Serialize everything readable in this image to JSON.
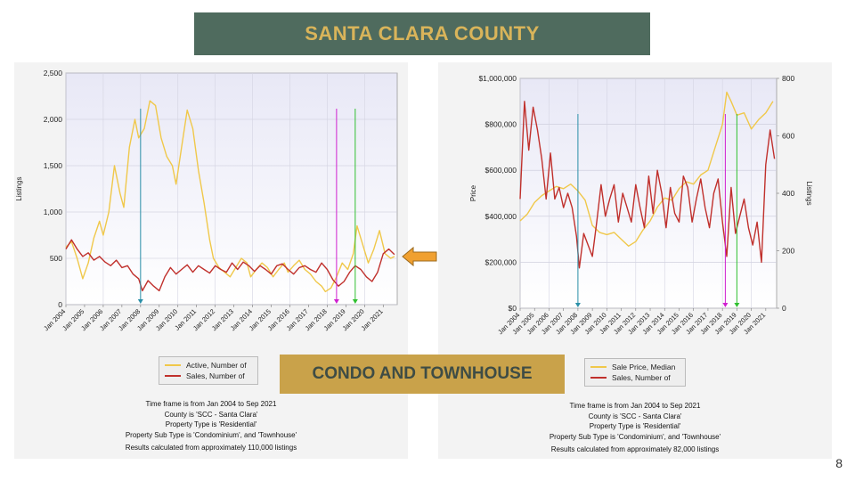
{
  "slide": {
    "title": "SANTA CLARA COUNTY",
    "subtitle": "CONDO AND TOWNHOUSE",
    "page_number": "8"
  },
  "colors": {
    "banner_bg": "#4f6b5e",
    "banner_text": "#d9b45a",
    "subbanner_bg": "#c9a24a",
    "subbanner_text": "#3e4c45",
    "yellow_series": "#f0c84a",
    "red_series": "#c0302c",
    "arrow": "#f0a030"
  },
  "left_notes": [
    "Time frame is from Jan 2004 to Sep 2021",
    "County is 'SCC - Santa Clara'",
    "Property Type is 'Residential'",
    "Property Sub Type is 'Condominium', and 'Townhouse'",
    "Results calculated from approximately 110,000 listings"
  ],
  "right_notes": [
    "Time frame is from Jan 2004 to Sep 2021",
    "County is 'SCC - Santa Clara'",
    "Property Type is 'Residential'",
    "Property Sub Type is 'Condominium', and 'Townhouse'",
    "Results calculated from approximately 82,000 listings"
  ],
  "chart_data": [
    {
      "type": "line",
      "ylabel": "Listings",
      "ylim": [
        0,
        2500
      ],
      "yticks": [
        "0",
        "500",
        "1,000",
        "1,500",
        "2,000",
        "2,500"
      ],
      "x_ticks": [
        "Jan 2004",
        "Jan 2005",
        "Jan 2006",
        "Jan 2007",
        "Jan 2008",
        "Jan 2009",
        "Jan 2010",
        "Jan 2011",
        "Jan 2012",
        "Jan 2013",
        "Jan 2014",
        "Jan 2015",
        "Jan 2016",
        "Jan 2017",
        "Jan 2018",
        "Jan 2019",
        "Jan 2020",
        "Jan 2021"
      ],
      "xlim": [
        2004,
        2021.75
      ],
      "grid": true,
      "legend_position": "bottom",
      "series": [
        {
          "name": "Active, Number of",
          "color": "#f0c84a",
          "points": [
            [
              2004.0,
              620
            ],
            [
              2004.3,
              680
            ],
            [
              2004.6,
              500
            ],
            [
              2004.9,
              280
            ],
            [
              2005.2,
              450
            ],
            [
              2005.5,
              720
            ],
            [
              2005.8,
              900
            ],
            [
              2006.0,
              750
            ],
            [
              2006.3,
              1000
            ],
            [
              2006.6,
              1500
            ],
            [
              2006.9,
              1200
            ],
            [
              2007.1,
              1050
            ],
            [
              2007.4,
              1700
            ],
            [
              2007.7,
              2000
            ],
            [
              2007.9,
              1800
            ],
            [
              2008.2,
              1900
            ],
            [
              2008.5,
              2200
            ],
            [
              2008.8,
              2150
            ],
            [
              2009.1,
              1800
            ],
            [
              2009.4,
              1600
            ],
            [
              2009.7,
              1500
            ],
            [
              2009.9,
              1300
            ],
            [
              2010.2,
              1700
            ],
            [
              2010.5,
              2100
            ],
            [
              2010.8,
              1900
            ],
            [
              2011.1,
              1450
            ],
            [
              2011.4,
              1100
            ],
            [
              2011.7,
              700
            ],
            [
              2011.9,
              500
            ],
            [
              2012.2,
              400
            ],
            [
              2012.5,
              350
            ],
            [
              2012.8,
              300
            ],
            [
              2013.1,
              400
            ],
            [
              2013.4,
              500
            ],
            [
              2013.7,
              450
            ],
            [
              2013.9,
              300
            ],
            [
              2014.2,
              380
            ],
            [
              2014.5,
              450
            ],
            [
              2014.8,
              400
            ],
            [
              2015.1,
              300
            ],
            [
              2015.4,
              380
            ],
            [
              2015.7,
              450
            ],
            [
              2015.9,
              350
            ],
            [
              2016.2,
              420
            ],
            [
              2016.5,
              480
            ],
            [
              2016.8,
              380
            ],
            [
              2017.1,
              330
            ],
            [
              2017.4,
              250
            ],
            [
              2017.7,
              200
            ],
            [
              2017.9,
              140
            ],
            [
              2018.2,
              180
            ],
            [
              2018.5,
              300
            ],
            [
              2018.8,
              450
            ],
            [
              2019.1,
              380
            ],
            [
              2019.4,
              550
            ],
            [
              2019.6,
              850
            ],
            [
              2019.9,
              650
            ],
            [
              2020.2,
              450
            ],
            [
              2020.5,
              600
            ],
            [
              2020.8,
              800
            ],
            [
              2021.1,
              550
            ],
            [
              2021.4,
              500
            ],
            [
              2021.6,
              520
            ]
          ]
        },
        {
          "name": "Sales, Number of",
          "color": "#c0302c",
          "points": [
            [
              2004.0,
              600
            ],
            [
              2004.3,
              700
            ],
            [
              2004.6,
              600
            ],
            [
              2004.9,
              520
            ],
            [
              2005.2,
              560
            ],
            [
              2005.5,
              480
            ],
            [
              2005.8,
              520
            ],
            [
              2006.1,
              460
            ],
            [
              2006.4,
              420
            ],
            [
              2006.7,
              480
            ],
            [
              2007.0,
              400
            ],
            [
              2007.3,
              420
            ],
            [
              2007.6,
              330
            ],
            [
              2007.9,
              280
            ],
            [
              2008.1,
              150
            ],
            [
              2008.4,
              260
            ],
            [
              2008.7,
              200
            ],
            [
              2009.0,
              150
            ],
            [
              2009.3,
              300
            ],
            [
              2009.6,
              400
            ],
            [
              2009.9,
              330
            ],
            [
              2010.2,
              380
            ],
            [
              2010.5,
              430
            ],
            [
              2010.8,
              350
            ],
            [
              2011.1,
              420
            ],
            [
              2011.4,
              380
            ],
            [
              2011.7,
              340
            ],
            [
              2012.0,
              420
            ],
            [
              2012.3,
              380
            ],
            [
              2012.6,
              350
            ],
            [
              2012.9,
              450
            ],
            [
              2013.2,
              380
            ],
            [
              2013.5,
              460
            ],
            [
              2013.8,
              420
            ],
            [
              2014.1,
              360
            ],
            [
              2014.4,
              420
            ],
            [
              2014.7,
              380
            ],
            [
              2015.0,
              330
            ],
            [
              2015.3,
              420
            ],
            [
              2015.6,
              440
            ],
            [
              2015.9,
              380
            ],
            [
              2016.2,
              330
            ],
            [
              2016.5,
              400
            ],
            [
              2016.8,
              420
            ],
            [
              2017.1,
              380
            ],
            [
              2017.4,
              350
            ],
            [
              2017.7,
              450
            ],
            [
              2018.0,
              380
            ],
            [
              2018.3,
              270
            ],
            [
              2018.6,
              200
            ],
            [
              2018.9,
              250
            ],
            [
              2019.2,
              350
            ],
            [
              2019.5,
              420
            ],
            [
              2019.8,
              380
            ],
            [
              2020.1,
              300
            ],
            [
              2020.4,
              250
            ],
            [
              2020.7,
              350
            ],
            [
              2021.0,
              550
            ],
            [
              2021.3,
              600
            ],
            [
              2021.6,
              540
            ]
          ]
        }
      ],
      "markers": [
        {
          "x": 2008.0,
          "color": "#2a8fa8"
        },
        {
          "x": 2018.5,
          "color": "#d020d0"
        },
        {
          "x": 2019.5,
          "color": "#30c030"
        }
      ]
    },
    {
      "type": "line",
      "ylabel": "Price",
      "y2label": "Listings",
      "ylim": [
        0,
        1000000
      ],
      "y2lim": [
        0,
        800
      ],
      "yticks": [
        "$0",
        "$200,000",
        "$400,000",
        "$600,000",
        "$800,000",
        "$1,000,000"
      ],
      "y2ticks": [
        "0",
        "200",
        "400",
        "600",
        "800"
      ],
      "x_ticks": [
        "Jan 2004",
        "Jan 2005",
        "Jan 2006",
        "Jan 2007",
        "Jan 2008",
        "Jan 2009",
        "Jan 2010",
        "Jan 2011",
        "Jan 2012",
        "Jan 2013",
        "Jan 2014",
        "Jan 2015",
        "Jan 2016",
        "Jan 2017",
        "Jan 2018",
        "Jan 2019",
        "Jan 2020",
        "Jan 2021"
      ],
      "xlim": [
        2004,
        2021.75
      ],
      "grid": true,
      "legend_position": "bottom",
      "series": [
        {
          "name": "Sale Price, Median",
          "color": "#f0c84a",
          "axis": "left",
          "points": [
            [
              2004.0,
              380000
            ],
            [
              2004.5,
              410000
            ],
            [
              2005.0,
              460000
            ],
            [
              2005.5,
              490000
            ],
            [
              2006.0,
              510000
            ],
            [
              2006.5,
              530000
            ],
            [
              2007.0,
              520000
            ],
            [
              2007.5,
              540000
            ],
            [
              2008.0,
              510000
            ],
            [
              2008.5,
              470000
            ],
            [
              2009.0,
              360000
            ],
            [
              2009.5,
              330000
            ],
            [
              2010.0,
              320000
            ],
            [
              2010.5,
              330000
            ],
            [
              2011.0,
              300000
            ],
            [
              2011.5,
              270000
            ],
            [
              2012.0,
              290000
            ],
            [
              2012.5,
              340000
            ],
            [
              2013.0,
              380000
            ],
            [
              2013.5,
              440000
            ],
            [
              2014.0,
              480000
            ],
            [
              2014.5,
              470000
            ],
            [
              2015.0,
              520000
            ],
            [
              2015.5,
              550000
            ],
            [
              2016.0,
              540000
            ],
            [
              2016.5,
              580000
            ],
            [
              2017.0,
              600000
            ],
            [
              2017.5,
              700000
            ],
            [
              2018.0,
              800000
            ],
            [
              2018.3,
              940000
            ],
            [
              2018.6,
              900000
            ],
            [
              2019.0,
              840000
            ],
            [
              2019.5,
              850000
            ],
            [
              2020.0,
              780000
            ],
            [
              2020.5,
              820000
            ],
            [
              2021.0,
              850000
            ],
            [
              2021.5,
              900000
            ]
          ]
        },
        {
          "name": "Sales, Number of",
          "color": "#c0302c",
          "axis": "right",
          "points": [
            [
              2004.0,
              380
            ],
            [
              2004.3,
              720
            ],
            [
              2004.6,
              550
            ],
            [
              2004.9,
              700
            ],
            [
              2005.2,
              620
            ],
            [
              2005.5,
              520
            ],
            [
              2005.8,
              380
            ],
            [
              2006.1,
              540
            ],
            [
              2006.4,
              380
            ],
            [
              2006.7,
              420
            ],
            [
              2007.0,
              350
            ],
            [
              2007.3,
              400
            ],
            [
              2007.6,
              350
            ],
            [
              2007.9,
              250
            ],
            [
              2008.1,
              140
            ],
            [
              2008.4,
              260
            ],
            [
              2008.7,
              220
            ],
            [
              2009.0,
              180
            ],
            [
              2009.3,
              300
            ],
            [
              2009.6,
              430
            ],
            [
              2009.9,
              320
            ],
            [
              2010.2,
              380
            ],
            [
              2010.5,
              430
            ],
            [
              2010.8,
              300
            ],
            [
              2011.1,
              400
            ],
            [
              2011.4,
              350
            ],
            [
              2011.7,
              300
            ],
            [
              2012.0,
              430
            ],
            [
              2012.3,
              350
            ],
            [
              2012.6,
              280
            ],
            [
              2012.9,
              460
            ],
            [
              2013.2,
              330
            ],
            [
              2013.5,
              480
            ],
            [
              2013.8,
              400
            ],
            [
              2014.1,
              280
            ],
            [
              2014.4,
              420
            ],
            [
              2014.7,
              330
            ],
            [
              2015.0,
              300
            ],
            [
              2015.3,
              460
            ],
            [
              2015.6,
              420
            ],
            [
              2015.9,
              300
            ],
            [
              2016.2,
              380
            ],
            [
              2016.5,
              450
            ],
            [
              2016.8,
              350
            ],
            [
              2017.1,
              280
            ],
            [
              2017.4,
              400
            ],
            [
              2017.7,
              450
            ],
            [
              2018.0,
              300
            ],
            [
              2018.3,
              180
            ],
            [
              2018.6,
              420
            ],
            [
              2018.9,
              260
            ],
            [
              2019.2,
              320
            ],
            [
              2019.5,
              380
            ],
            [
              2019.8,
              280
            ],
            [
              2020.1,
              220
            ],
            [
              2020.4,
              300
            ],
            [
              2020.7,
              160
            ],
            [
              2021.0,
              500
            ],
            [
              2021.3,
              620
            ],
            [
              2021.6,
              520
            ]
          ]
        }
      ],
      "markers": [
        {
          "x": 2008.0,
          "color": "#2a8fa8"
        },
        {
          "x": 2018.2,
          "color": "#d020d0"
        },
        {
          "x": 2019.0,
          "color": "#30c030"
        }
      ]
    }
  ]
}
